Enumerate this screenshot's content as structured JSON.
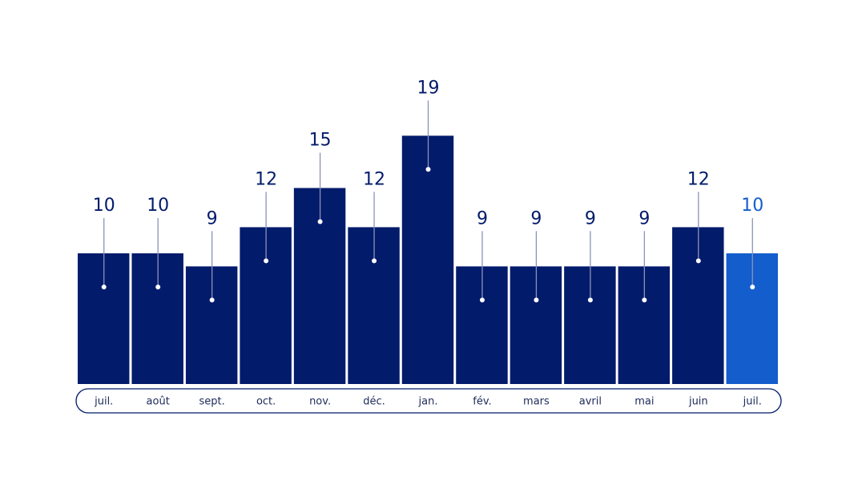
{
  "chart_data": {
    "type": "bar",
    "categories": [
      "juil.",
      "août",
      "sept.",
      "oct.",
      "nov.",
      "déc.",
      "jan.",
      "fév.",
      "mars",
      "avril",
      "mai",
      "juin",
      "juil."
    ],
    "values": [
      10,
      10,
      9,
      12,
      15,
      12,
      19,
      9,
      9,
      9,
      9,
      12,
      10
    ],
    "colors": [
      "#021b6b",
      "#021b6b",
      "#021b6b",
      "#021b6b",
      "#021b6b",
      "#021b6b",
      "#021b6b",
      "#021b6b",
      "#021b6b",
      "#021b6b",
      "#021b6b",
      "#021b6b",
      "#135dcc"
    ]
  }
}
